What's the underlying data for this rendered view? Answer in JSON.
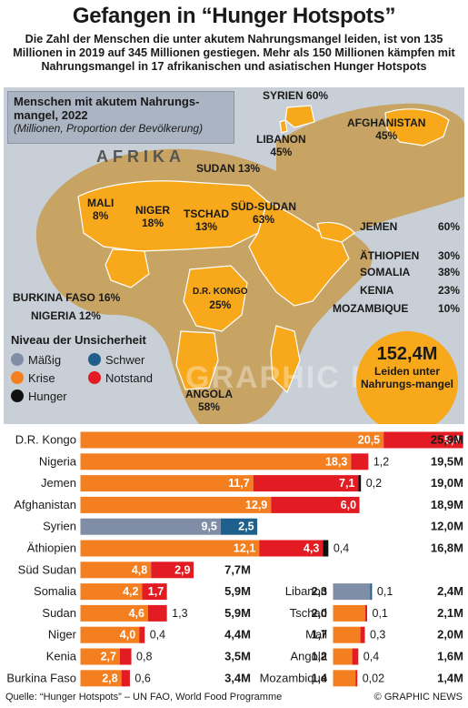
{
  "title": "Gefangen in “Hunger Hotspots”",
  "subtitle": "Die Zahl der Menschen die unter akutem Nahrungsmangel leiden, ist von 135 Millionen in 2019 auf 345 Millionen gestiegen. Mehr als 150 Millionen kämpfen mit Nahrungsmangel in 17 afrikanischen und asiatischen Hunger Hotspots",
  "map": {
    "box_title": "Menschen mit akutem Nahrungs-mangel, 2022",
    "box_subtitle": "(Millionen, Proportion der Bevölkerung)",
    "continent": "AFRIKA",
    "watermark": "GRAPHIC NEWS",
    "labels": [
      {
        "country": "SYRIEN",
        "pct": "60%"
      },
      {
        "country": "AFGHANISTAN",
        "pct": "45%"
      },
      {
        "country": "LIBANON",
        "pct": "45%"
      },
      {
        "country": "SUDAN",
        "pct": "13%"
      },
      {
        "country": "MALI",
        "pct": "8%"
      },
      {
        "country": "NIGER",
        "pct": "18%"
      },
      {
        "country": "TSCHAD",
        "pct": "13%"
      },
      {
        "country": "SÜD-SUDAN",
        "pct": "63%"
      },
      {
        "country": "JEMEN",
        "pct": "60%"
      },
      {
        "country": "ÄTHIOPIEN",
        "pct": "30%"
      },
      {
        "country": "SOMALIA",
        "pct": "38%"
      },
      {
        "country": "KENIA",
        "pct": "23%"
      },
      {
        "country": "MOZAMBIQUE",
        "pct": "10%"
      },
      {
        "country": "BURKINA FASO",
        "pct": "16%"
      },
      {
        "country": "NIGERIA",
        "pct": "12%"
      },
      {
        "country": "D.R. KONGO",
        "pct": "25%"
      },
      {
        "country": "ANGOLA",
        "pct": "58%"
      }
    ]
  },
  "legend": {
    "title": "Niveau der Unsicherheit",
    "items": [
      {
        "label": "Mäßig",
        "color": "#7f8ea6"
      },
      {
        "label": "Schwer",
        "color": "#1f5f8b"
      },
      {
        "label": "Krise",
        "color": "#f47f20"
      },
      {
        "label": "Notstand",
        "color": "#e31b23"
      },
      {
        "label": "Hunger",
        "color": "#111111"
      }
    ]
  },
  "total": {
    "value": "152,4M",
    "text": "Leiden unter Nahrungs-mangel"
  },
  "colors": {
    "krise": "#f47f20",
    "notstand": "#e31b23",
    "maessig": "#7f8ea6",
    "schwer": "#1f5f8b",
    "hunger": "#111111",
    "map_highlight": "#f7a81b",
    "map_land": "#c8a464",
    "map_sea": "#c9cfd6"
  },
  "chart_data": {
    "type": "bar",
    "stacked": true,
    "unit": "Millionen",
    "series_order": [
      "maessig",
      "schwer",
      "krise",
      "notstand",
      "hunger"
    ],
    "rows": [
      {
        "country": "D.R. Kongo",
        "maessig": null,
        "schwer": null,
        "krise": 20.5,
        "notstand": 5.4,
        "hunger": null,
        "krise_label": "20,5",
        "notstand_label": "5,4",
        "total": "25,9M"
      },
      {
        "country": "Nigeria",
        "maessig": null,
        "schwer": null,
        "krise": 18.3,
        "notstand": 1.2,
        "hunger": null,
        "krise_label": "18,3",
        "notstand_label": "1,2",
        "total": "19,5M"
      },
      {
        "country": "Jemen",
        "maessig": null,
        "schwer": null,
        "krise": 11.7,
        "notstand": 7.1,
        "hunger": 0.2,
        "krise_label": "11,7",
        "notstand_label": "7,1",
        "hunger_label": "0,2",
        "total": "19,0M"
      },
      {
        "country": "Afghanistan",
        "maessig": null,
        "schwer": null,
        "krise": 12.9,
        "notstand": 6.0,
        "hunger": null,
        "krise_label": "12,9",
        "notstand_label": "6,0",
        "total": "18,9M"
      },
      {
        "country": "Syrien",
        "maessig": 9.5,
        "schwer": 2.5,
        "krise": null,
        "notstand": null,
        "hunger": null,
        "maessig_label": "9,5",
        "schwer_label": "2,5",
        "total": "12,0M"
      },
      {
        "country": "Äthiopien",
        "maessig": null,
        "schwer": null,
        "krise": 12.1,
        "notstand": 4.3,
        "hunger": 0.4,
        "krise_label": "12,1",
        "notstand_label": "4,3",
        "hunger_label": "0,4",
        "total": "16,8M"
      },
      {
        "country": "Süd Sudan",
        "maessig": null,
        "schwer": null,
        "krise": 4.8,
        "notstand": 2.9,
        "hunger": null,
        "krise_label": "4,8",
        "notstand_label": "2,9",
        "total": "7,7M"
      },
      {
        "country": "Somalia",
        "maessig": null,
        "schwer": null,
        "krise": 4.2,
        "notstand": 1.7,
        "hunger": null,
        "krise_label": "4,2",
        "notstand_label": "1,7",
        "total": "5,9M"
      },
      {
        "country": "Sudan",
        "maessig": null,
        "schwer": null,
        "krise": 4.6,
        "notstand": 1.3,
        "hunger": null,
        "krise_label": "4,6",
        "notstand_label": "1,3",
        "total": "5,9M"
      },
      {
        "country": "Niger",
        "maessig": null,
        "schwer": null,
        "krise": 4.0,
        "notstand": 0.4,
        "hunger": null,
        "krise_label": "4,0",
        "notstand_label": "0,4",
        "total": "4,4M"
      },
      {
        "country": "Kenia",
        "maessig": null,
        "schwer": null,
        "krise": 2.7,
        "notstand": 0.8,
        "hunger": null,
        "krise_label": "2,7",
        "notstand_label": "0,8",
        "total": "3,5M"
      },
      {
        "country": "Burkina Faso",
        "maessig": null,
        "schwer": null,
        "krise": 2.8,
        "notstand": 0.6,
        "hunger": null,
        "krise_label": "2,8",
        "notstand_label": "0,6",
        "total": "3,4M"
      },
      {
        "country": "Libanon",
        "maessig": 2.3,
        "schwer": 0.1,
        "krise": null,
        "notstand": null,
        "hunger": null,
        "maessig_label": "2,3",
        "schwer_label": "0,1",
        "total": "2,4M"
      },
      {
        "country": "Tschad",
        "maessig": null,
        "schwer": null,
        "krise": 2.0,
        "notstand": 0.1,
        "hunger": null,
        "krise_label": "2,0",
        "notstand_label": "0,1",
        "total": "2,1M"
      },
      {
        "country": "Mali",
        "maessig": null,
        "schwer": null,
        "krise": 1.7,
        "notstand": 0.3,
        "hunger": null,
        "krise_label": "1,7",
        "notstand_label": "0,3",
        "total": "2,0M"
      },
      {
        "country": "Angola",
        "maessig": null,
        "schwer": null,
        "krise": 1.2,
        "notstand": 0.4,
        "hunger": null,
        "krise_label": "1,2",
        "notstand_label": "0,4",
        "total": "1,6M"
      },
      {
        "country": "Mozambique",
        "maessig": null,
        "schwer": null,
        "krise": 1.4,
        "notstand": 0.02,
        "hunger": null,
        "krise_label": "1,4",
        "notstand_label": "0,02",
        "total": "1,4M"
      }
    ]
  },
  "footer": {
    "source": "Quelle: “Hunger Hotspots” – UN FAO, World Food Programme",
    "credit": "© GRAPHIC NEWS"
  }
}
